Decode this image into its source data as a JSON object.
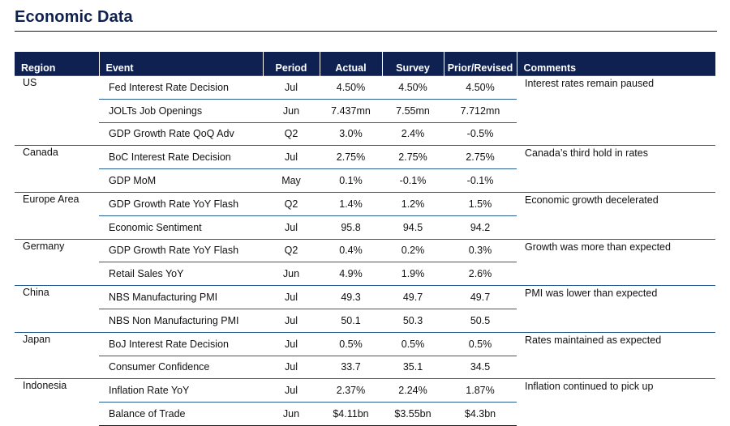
{
  "title": "Economic Data",
  "colors": {
    "header_bg": "#0f2150",
    "header_text": "#ffffff",
    "title_text": "#0f2150",
    "row_rule": "#2a5d8f"
  },
  "table": {
    "columns": [
      "Region",
      "Event",
      "Period",
      "Actual",
      "Survey",
      "Prior/Revised",
      "Comments"
    ],
    "groups": [
      {
        "region": "US",
        "comment": "Interest rates remain paused",
        "rows": [
          {
            "event": "Fed Interest Rate Decision",
            "period": "Jul",
            "actual": "4.50%",
            "survey": "4.50%",
            "prior": "4.50%"
          },
          {
            "event": "JOLTs Job Openings",
            "period": "Jun",
            "actual": "7.437mn",
            "survey": "7.55mn",
            "prior": "7.712mn"
          },
          {
            "event": "GDP Growth Rate QoQ Adv",
            "period": "Q2",
            "actual": "3.0%",
            "survey": "2.4%",
            "prior": "-0.5%"
          }
        ]
      },
      {
        "region": "Canada",
        "comment": "Canada’s third hold in rates",
        "rows": [
          {
            "event": "BoC Interest Rate Decision",
            "period": "Jul",
            "actual": "2.75%",
            "survey": "2.75%",
            "prior": "2.75%"
          },
          {
            "event": "GDP MoM",
            "period": "May",
            "actual": "0.1%",
            "survey": "-0.1%",
            "prior": "-0.1%"
          }
        ]
      },
      {
        "region": "Europe Area",
        "comment": "Economic growth decelerated",
        "rows": [
          {
            "event": "GDP Growth Rate YoY Flash",
            "period": "Q2",
            "actual": "1.4%",
            "survey": "1.2%",
            "prior": "1.5%"
          },
          {
            "event": "Economic Sentiment",
            "period": "Jul",
            "actual": "95.8",
            "survey": "94.5",
            "prior": "94.2"
          }
        ]
      },
      {
        "region": "Germany",
        "comment": "Growth was more than expected",
        "rows": [
          {
            "event": "GDP Growth Rate YoY Flash",
            "period": "Q2",
            "actual": "0.4%",
            "survey": "0.2%",
            "prior": "0.3%"
          },
          {
            "event": "Retail Sales YoY",
            "period": "Jun",
            "actual": "4.9%",
            "survey": "1.9%",
            "prior": "2.6%"
          }
        ]
      },
      {
        "region": "China",
        "comment": "PMI was lower than expected",
        "rows": [
          {
            "event": "NBS Manufacturing PMI",
            "period": "Jul",
            "actual": "49.3",
            "survey": "49.7",
            "prior": "49.7"
          },
          {
            "event": "NBS Non Manufacturing PMI",
            "period": "Jul",
            "actual": "50.1",
            "survey": "50.3",
            "prior": "50.5"
          }
        ]
      },
      {
        "region": "Japan",
        "comment": "Rates maintained as expected",
        "rows": [
          {
            "event": "BoJ Interest Rate Decision",
            "period": "Jul",
            "actual": "0.5%",
            "survey": "0.5%",
            "prior": "0.5%"
          },
          {
            "event": "Consumer Confidence",
            "period": "Jul",
            "actual": "33.7",
            "survey": "35.1",
            "prior": "34.5"
          }
        ]
      },
      {
        "region": "Indonesia",
        "comment": "Inflation continued to pick up",
        "rows": [
          {
            "event": "Inflation Rate YoY",
            "period": "Jul",
            "actual": "2.37%",
            "survey": "2.24%",
            "prior": "1.87%"
          },
          {
            "event": "Balance of Trade",
            "period": "Jun",
            "actual": "$4.11bn",
            "survey": "$3.55bn",
            "prior": "$4.3bn"
          }
        ]
      }
    ]
  }
}
